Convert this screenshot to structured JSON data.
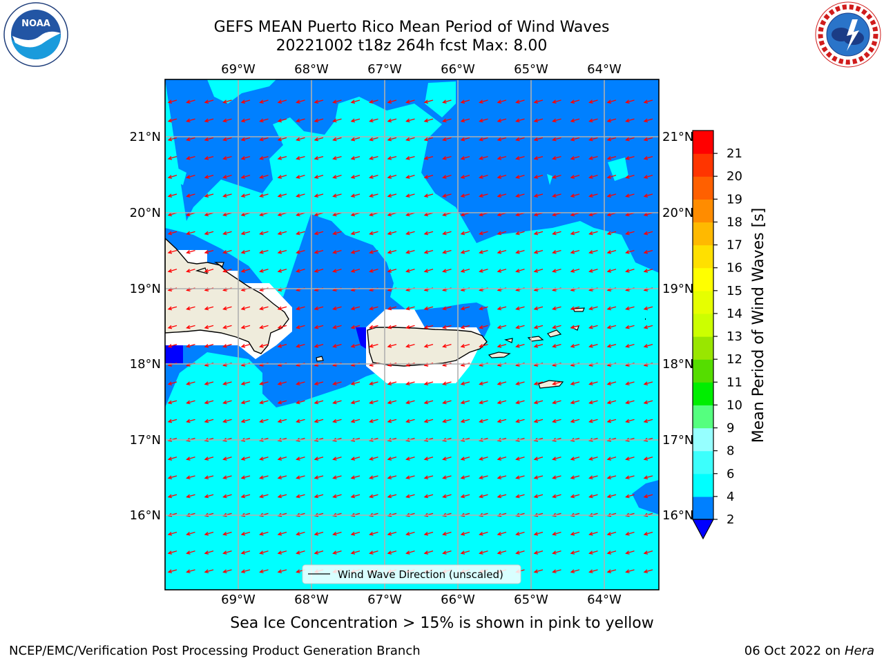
{
  "header": {
    "title_line1": "GEFS MEAN Puerto Rico Mean Period of Wind Waves",
    "title_line2": "20221002 t18z 264h fcst   Max: 8.00"
  },
  "logos": {
    "left": "NOAA",
    "left_ring_text": "NATIONAL OCEANIC AND ATMOSPHERIC ADMINISTRATION · U.S. DEPARTMENT OF COMMERCE",
    "right_ring_text": "NATIONAL WEATHER SERVICE"
  },
  "map": {
    "lon_labels": [
      "69°W",
      "68°W",
      "67°W",
      "66°W",
      "65°W",
      "64°W"
    ],
    "lat_labels": [
      "21°N",
      "20°N",
      "19°N",
      "18°N",
      "17°N",
      "16°N"
    ],
    "legend_label": "Wind Wave Direction (unscaled)",
    "colors": {
      "ocean_light": "#00ffff",
      "ocean_mid": "#0080ff",
      "ocean_deep": "#0000ff",
      "land": "#efecdc",
      "arrow": "#ff0000",
      "grid": "#b0b0b0"
    }
  },
  "colorbar": {
    "label": "Mean Period of Wind Waves [s]",
    "ticks": [
      "2",
      "4",
      "6",
      "8",
      "9",
      "10",
      "11",
      "12",
      "13",
      "14",
      "15",
      "16",
      "17",
      "18",
      "19",
      "20",
      "21"
    ],
    "band_colors": [
      "#0080ff",
      "#00ffff",
      "#3cfffc",
      "#96ffff",
      "#55ff7f",
      "#00ee00",
      "#55dd00",
      "#99e600",
      "#ccff00",
      "#e6ff00",
      "#ffff00",
      "#ffe000",
      "#ffb900",
      "#ff8c00",
      "#ff6000",
      "#ff3500",
      "#ff0000"
    ],
    "under_color": "#0000ff"
  },
  "subtitle": "Sea Ice Concentration > 15% is shown in pink to yellow",
  "footer": {
    "left": "NCEP/EMC/Verification Post Processing Product Generation Branch",
    "right_prefix": "06 Oct 2022 on ",
    "right_host": "Hera"
  }
}
